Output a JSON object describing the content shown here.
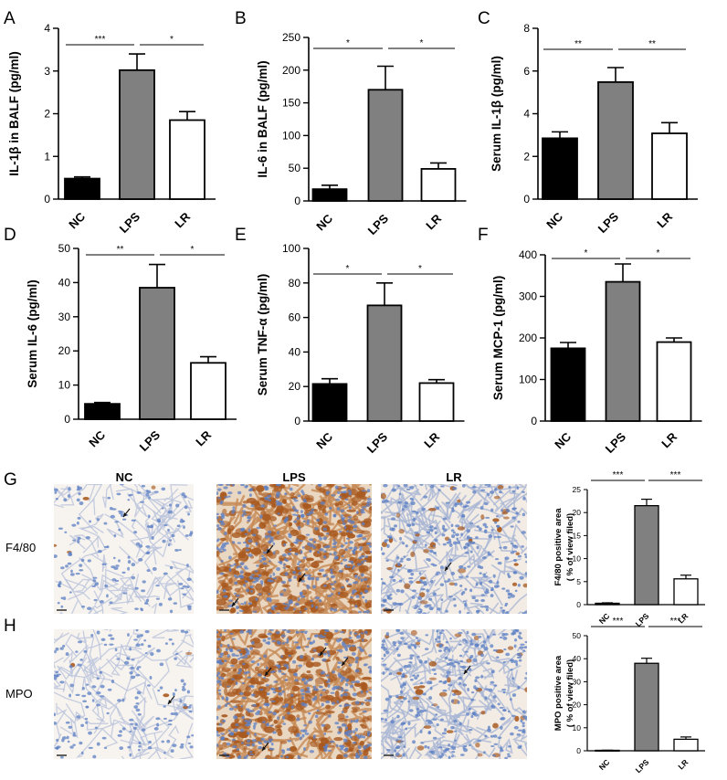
{
  "colors": {
    "NC": "#000000",
    "LPS": "#808080",
    "LR": "#ffffff",
    "stain_brown": "#a8591f",
    "nuclei_blue": "#5b7fc4",
    "background_tissue": "#f3ede4"
  },
  "panel_letters": [
    "A",
    "B",
    "C",
    "D",
    "E",
    "F",
    "G",
    "H"
  ],
  "micrograph": {
    "column_titles": [
      "NC",
      "LPS",
      "LR"
    ],
    "row_labels": [
      "F4/80",
      "MPO"
    ],
    "arrow_icon": "arrow-icon"
  },
  "chart_data": [
    {
      "id": "A",
      "type": "bar",
      "categories": [
        "NC",
        "LPS",
        "LR"
      ],
      "values": [
        0.48,
        3.02,
        1.85
      ],
      "errors": [
        0.04,
        0.38,
        0.2
      ],
      "ylabel": "IL-1β in BALF  (pg/ml)",
      "ylim": [
        0,
        4
      ],
      "yticks": [
        "0",
        "1",
        "2",
        "3",
        "4"
      ],
      "comparisons": [
        {
          "from": "NC",
          "to": "LPS",
          "label": "***"
        },
        {
          "from": "LPS",
          "to": "LR",
          "label": "*"
        }
      ]
    },
    {
      "id": "B",
      "type": "bar",
      "categories": [
        "NC",
        "LPS",
        "LR"
      ],
      "values": [
        18,
        170,
        49
      ],
      "errors": [
        6,
        36,
        9
      ],
      "ylabel": "IL-6 in BALF  (pg/ml)",
      "ylim": [
        0,
        250
      ],
      "yticks": [
        "0",
        "50",
        "100",
        "150",
        "200",
        "250"
      ],
      "comparisons": [
        {
          "from": "NC",
          "to": "LPS",
          "label": "*"
        },
        {
          "from": "LPS",
          "to": "LR",
          "label": "*"
        }
      ]
    },
    {
      "id": "C",
      "type": "bar",
      "categories": [
        "NC",
        "LPS",
        "LR"
      ],
      "values": [
        2.85,
        5.48,
        3.08
      ],
      "errors": [
        0.3,
        0.68,
        0.5
      ],
      "ylabel": "Serum IL-1β  (pg/ml)",
      "ylim": [
        0,
        8
      ],
      "yticks": [
        "0",
        "2",
        "4",
        "6",
        "8"
      ],
      "comparisons": [
        {
          "from": "NC",
          "to": "LPS",
          "label": "**"
        },
        {
          "from": "LPS",
          "to": "LR",
          "label": "**"
        }
      ]
    },
    {
      "id": "D",
      "type": "bar",
      "categories": [
        "NC",
        "LPS",
        "LR"
      ],
      "values": [
        4.5,
        38.5,
        16.5
      ],
      "errors": [
        0.4,
        6.8,
        1.8
      ],
      "ylabel": "Serum IL-6  (pg/ml)",
      "ylim": [
        0,
        50
      ],
      "yticks": [
        "0",
        "10",
        "20",
        "30",
        "40",
        "50"
      ],
      "comparisons": [
        {
          "from": "NC",
          "to": "LPS",
          "label": "**"
        },
        {
          "from": "LPS",
          "to": "LR",
          "label": "*"
        }
      ]
    },
    {
      "id": "E",
      "type": "bar",
      "categories": [
        "NC",
        "LPS",
        "LR"
      ],
      "values": [
        21.5,
        67,
        22
      ],
      "errors": [
        3,
        13,
        2
      ],
      "ylabel": "Serum TNF-α  (pg/ml)",
      "ylim": [
        0,
        100
      ],
      "yticks": [
        "0",
        "20",
        "40",
        "60",
        "80",
        "100"
      ],
      "comparisons": [
        {
          "from": "NC",
          "to": "LPS",
          "label": "*"
        },
        {
          "from": "LPS",
          "to": "LR",
          "label": "*"
        }
      ]
    },
    {
      "id": "F",
      "type": "bar",
      "categories": [
        "NC",
        "LPS",
        "LR"
      ],
      "values": [
        175,
        335,
        190
      ],
      "errors": [
        14,
        43,
        10
      ],
      "ylabel": "Serum MCP-1  (pg/ml)",
      "ylim": [
        0,
        400
      ],
      "yticks": [
        "0",
        "100",
        "200",
        "300",
        "400"
      ],
      "comparisons": [
        {
          "from": "NC",
          "to": "LPS",
          "label": "*"
        },
        {
          "from": "LPS",
          "to": "LR",
          "label": "*"
        }
      ]
    },
    {
      "id": "G",
      "type": "bar",
      "categories": [
        "NC",
        "LPS",
        "LR"
      ],
      "values": [
        0.3,
        21.5,
        5.6
      ],
      "errors": [
        0.1,
        1.4,
        0.8
      ],
      "ylabel": "F4/80 positive area",
      "ylabel2": "( % of view filed)",
      "ylim": [
        0,
        25
      ],
      "yticks": [
        "0",
        "5",
        "10",
        "15",
        "20",
        "25"
      ],
      "comparisons": [
        {
          "from": "NC",
          "to": "LPS",
          "label": "***"
        },
        {
          "from": "LPS",
          "to": "LR",
          "label": "***"
        }
      ]
    },
    {
      "id": "H",
      "type": "bar",
      "categories": [
        "NC",
        "LPS",
        "LR"
      ],
      "values": [
        0.2,
        38,
        5
      ],
      "errors": [
        0.05,
        2.2,
        1.0
      ],
      "ylabel": "MPO positive area",
      "ylabel2": "( % of view filed)",
      "ylim": [
        0,
        50
      ],
      "yticks": [
        "0",
        "10",
        "20",
        "30",
        "40",
        "50"
      ],
      "comparisons": [
        {
          "from": "NC",
          "to": "LPS",
          "label": "***"
        },
        {
          "from": "LPS",
          "to": "LR",
          "label": "***"
        }
      ]
    }
  ]
}
